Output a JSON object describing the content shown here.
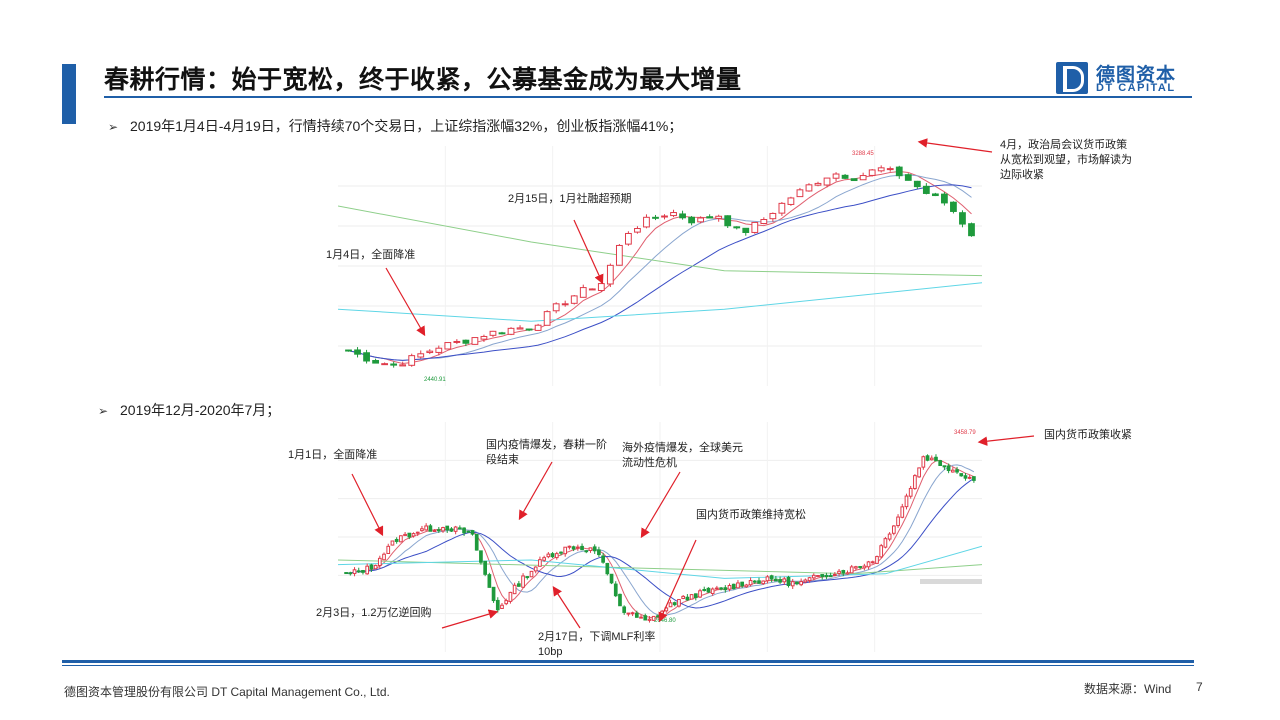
{
  "title": "春耕行情：始于宽松，终于收紧，公募基金成为最大增量",
  "logo": {
    "cn": "德图资本",
    "en": "DT CAPITAL",
    "icon": "dt-logo-icon"
  },
  "bullets": [
    "2019年1月4日-4月19日，行情持续70个交易日，上证综指涨幅32%，创业板指涨幅41%；",
    "2019年12月-2020年7月；"
  ],
  "colors": {
    "accent": "#1f5fa8",
    "up": "#e03b4a",
    "down": "#1e9a3c",
    "ma5": "#e06070",
    "ma10": "#8aa6cf",
    "ma20": "#3c4fc6",
    "ma60": "#5fd6e6",
    "ma120": "#8ecf8a"
  },
  "chart_data": [
    {
      "type": "candlestick",
      "period": "2019年1月4日-4月19日",
      "price_labels": [
        "3288.45",
        "2440.91"
      ],
      "ohlc_summary": {
        "high": 3288.45,
        "low": 2440.91
      },
      "annotations": [
        "1月4日，全面降准",
        "2月15日，1月社融超预期",
        "4月，政治局会议货币政策从宽松到观望，市场解读为边际收紧"
      ]
    },
    {
      "type": "candlestick",
      "period": "2019年12月-2020年7月",
      "price_labels": [
        "3458.79",
        "2646.80"
      ],
      "ohlc_summary": {
        "high": 3458.79,
        "low": 2646.8
      },
      "annotations": [
        "1月1日，全面降准",
        "国内疫情爆发，春耕一阶段结束",
        "海外疫情爆发，全球美元流动性危机",
        "国内货币政策维持宽松",
        "国内货币政策收紧",
        "2月3日，1.2万亿逆回购",
        "2月17日，下调MLF利率10bp"
      ]
    }
  ],
  "footer": {
    "company": "德图资本管理股份有限公司  DT Capital Management  Co., Ltd.",
    "source": "数据来源：Wind",
    "page": "7"
  }
}
